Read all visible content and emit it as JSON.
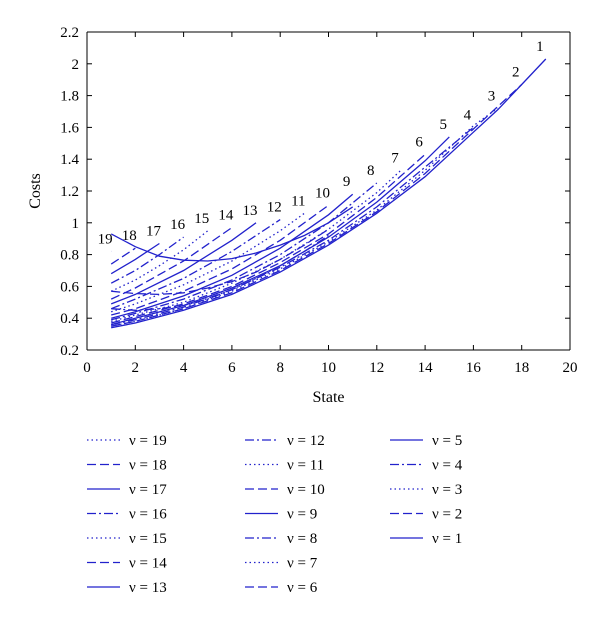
{
  "chart_data": {
    "type": "line",
    "xlabel": "State",
    "ylabel": "Costs",
    "xlim": [
      0,
      20
    ],
    "ylim": [
      0.2,
      2.2
    ],
    "xticks": [
      0,
      2,
      4,
      6,
      8,
      10,
      12,
      14,
      16,
      18,
      20
    ],
    "yticks": [
      0.2,
      0.4,
      0.6,
      0.8,
      1,
      1.2,
      1.4,
      1.6,
      1.8,
      2,
      2.2
    ],
    "grid": false,
    "line_color": "#2222cc",
    "legend_columns": 3,
    "legend_labels": [
      "ν = 19",
      "ν = 18",
      "ν = 17",
      "ν = 16",
      "ν = 15",
      "ν = 14",
      "ν = 13",
      "ν = 12",
      "ν = 11",
      "ν = 10",
      "ν = 9",
      "ν = 8",
      "ν = 7",
      "ν = 6",
      "ν = 5",
      "ν = 4",
      "ν = 3",
      "ν = 2",
      "ν = 1"
    ],
    "series": [
      {
        "name": "ν = 1",
        "label": "1",
        "style": "solid",
        "end_x": 19,
        "x": [
          1,
          2,
          4,
          6,
          8,
          10,
          12,
          14,
          16,
          17,
          18,
          19
        ],
        "y": [
          0.34,
          0.37,
          0.45,
          0.55,
          0.69,
          0.86,
          1.06,
          1.29,
          1.57,
          1.71,
          1.87,
          2.03
        ]
      },
      {
        "name": "ν = 2",
        "label": "2",
        "style": "dashed",
        "end_x": 18,
        "x": [
          1,
          2,
          4,
          6,
          8,
          10,
          12,
          14,
          16,
          17,
          18
        ],
        "y": [
          0.35,
          0.38,
          0.46,
          0.56,
          0.7,
          0.87,
          1.07,
          1.31,
          1.59,
          1.73,
          1.87
        ]
      },
      {
        "name": "ν = 3",
        "label": "3",
        "style": "dotted",
        "end_x": 17,
        "x": [
          1,
          2,
          4,
          6,
          8,
          10,
          12,
          14,
          16,
          17
        ],
        "y": [
          0.35,
          0.38,
          0.46,
          0.57,
          0.71,
          0.88,
          1.08,
          1.33,
          1.61,
          1.72
        ]
      },
      {
        "name": "ν = 4",
        "label": "4",
        "style": "dashdot",
        "end_x": 16,
        "x": [
          1,
          2,
          4,
          6,
          8,
          10,
          12,
          14,
          16
        ],
        "y": [
          0.36,
          0.39,
          0.47,
          0.58,
          0.72,
          0.89,
          1.1,
          1.35,
          1.6
        ]
      },
      {
        "name": "ν = 5",
        "label": "5",
        "style": "solid",
        "end_x": 15,
        "x": [
          1,
          2,
          4,
          6,
          8,
          10,
          12,
          14,
          15
        ],
        "y": [
          0.36,
          0.4,
          0.48,
          0.59,
          0.73,
          0.91,
          1.13,
          1.39,
          1.54
        ]
      },
      {
        "name": "ν = 6",
        "label": "6",
        "style": "dashed",
        "end_x": 14,
        "x": [
          1,
          2,
          4,
          6,
          8,
          10,
          12,
          14
        ],
        "y": [
          0.37,
          0.41,
          0.49,
          0.6,
          0.75,
          0.93,
          1.16,
          1.43
        ]
      },
      {
        "name": "ν = 7",
        "label": "7",
        "style": "dotted",
        "end_x": 13,
        "x": [
          1,
          2,
          4,
          6,
          8,
          10,
          12,
          13
        ],
        "y": [
          0.38,
          0.42,
          0.5,
          0.62,
          0.77,
          0.96,
          1.19,
          1.33
        ]
      },
      {
        "name": "ν = 8",
        "label": "8",
        "style": "dashdot",
        "end_x": 12,
        "x": [
          1,
          2,
          4,
          6,
          8,
          10,
          12
        ],
        "y": [
          0.39,
          0.43,
          0.52,
          0.64,
          0.8,
          1.0,
          1.25
        ]
      },
      {
        "name": "ν = 9",
        "label": "9",
        "style": "solid",
        "end_x": 11,
        "x": [
          1,
          2,
          4,
          6,
          8,
          10,
          11
        ],
        "y": [
          0.4,
          0.44,
          0.54,
          0.67,
          0.84,
          1.05,
          1.18
        ]
      },
      {
        "name": "ν = 10",
        "label": "10",
        "style": "dashed",
        "end_x": 10,
        "x": [
          1,
          2,
          4,
          6,
          8,
          10
        ],
        "y": [
          0.42,
          0.46,
          0.57,
          0.71,
          0.89,
          1.11
        ]
      },
      {
        "name": "ν = 11",
        "label": "11",
        "style": "dotted",
        "end_x": 9,
        "x": [
          1,
          2,
          4,
          6,
          8,
          9
        ],
        "y": [
          0.44,
          0.49,
          0.61,
          0.76,
          0.95,
          1.06
        ]
      },
      {
        "name": "ν = 12",
        "label": "12",
        "style": "dashdot",
        "end_x": 8,
        "x": [
          1,
          2,
          4,
          6,
          8
        ],
        "y": [
          0.46,
          0.52,
          0.65,
          0.82,
          1.02
        ]
      },
      {
        "name": "ν = 13",
        "label": "13",
        "style": "solid",
        "end_x": 7,
        "x": [
          1,
          2,
          4,
          6,
          7
        ],
        "y": [
          0.49,
          0.55,
          0.7,
          0.89,
          1.0
        ]
      },
      {
        "name": "ν = 14",
        "label": "14",
        "style": "dashed",
        "end_x": 6,
        "x": [
          1,
          2,
          4,
          6
        ],
        "y": [
          0.52,
          0.59,
          0.76,
          0.97
        ]
      },
      {
        "name": "ν = 15",
        "label": "15",
        "style": "dotted",
        "end_x": 5,
        "x": [
          1,
          2,
          3,
          4,
          5
        ],
        "y": [
          0.57,
          0.64,
          0.73,
          0.83,
          0.95
        ]
      },
      {
        "name": "ν = 16",
        "label": "16",
        "style": "dashdot",
        "end_x": 4,
        "x": [
          1,
          2,
          3,
          4
        ],
        "y": [
          0.62,
          0.7,
          0.8,
          0.91
        ]
      },
      {
        "name": "ν = 17",
        "label": "17",
        "style": "solid",
        "end_x": 3,
        "x": [
          1,
          2,
          3
        ],
        "y": [
          0.68,
          0.77,
          0.87
        ]
      },
      {
        "name": "ν = 18",
        "label": "18",
        "style": "dashed",
        "end_x": 2,
        "x": [
          1,
          2
        ],
        "y": [
          0.74,
          0.84
        ]
      },
      {
        "name": "ν = 19",
        "label": "19",
        "style": "dotted",
        "end_x": 1,
        "x": [
          1
        ],
        "y": [
          0.82
        ]
      }
    ],
    "envelope_curves": [
      {
        "style": "solid",
        "x": [
          1,
          2,
          3,
          4,
          5,
          6,
          7,
          8,
          9,
          10,
          11
        ],
        "y": [
          0.93,
          0.85,
          0.79,
          0.765,
          0.76,
          0.775,
          0.81,
          0.86,
          0.92,
          1.0,
          1.1
        ]
      },
      {
        "style": "dashed",
        "x": [
          1,
          2,
          3,
          4,
          5,
          6,
          7,
          8,
          9,
          10
        ],
        "y": [
          0.57,
          0.555,
          0.55,
          0.56,
          0.59,
          0.63,
          0.69,
          0.77,
          0.86,
          0.96
        ]
      },
      {
        "style": "dashdot",
        "x": [
          1,
          2,
          3,
          4,
          5,
          6,
          7,
          8,
          9,
          10
        ],
        "y": [
          0.46,
          0.45,
          0.46,
          0.48,
          0.52,
          0.58,
          0.65,
          0.73,
          0.82,
          0.92
        ]
      }
    ]
  }
}
